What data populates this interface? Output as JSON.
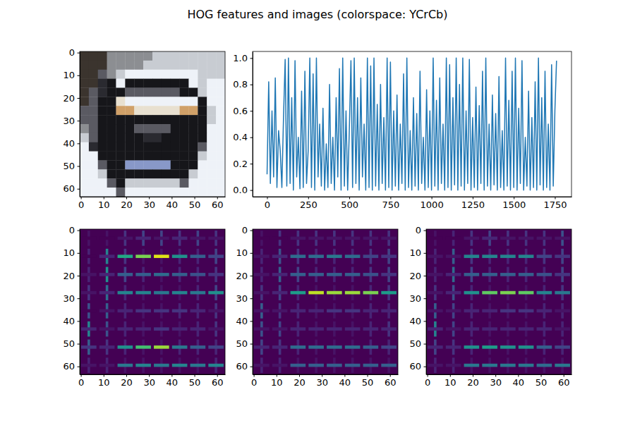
{
  "title": "HOG features and images (colorspace: YCrCb)",
  "chart_data": [
    {
      "type": "image",
      "xlim": [
        -0.5,
        63.5
      ],
      "ylim": [
        63.5,
        -0.5
      ],
      "xticks": [
        0,
        10,
        20,
        30,
        40,
        50,
        60
      ],
      "yticks": [
        0,
        10,
        20,
        30,
        40,
        50,
        60
      ],
      "pixels": [
        [
          "#3b342e",
          "#3b342e",
          "#3b342e",
          "#8c8e92",
          "#8c8e92",
          "#8c8e92",
          "#8c8e92",
          "#8c8e92",
          "#c8ccd2",
          "#c8ccd2",
          "#c8ccd2",
          "#c8ccd2",
          "#c8ccd2",
          "#c8ccd2",
          "#c8ccd2",
          "#c8ccd2"
        ],
        [
          "#3b342e",
          "#3b342e",
          "#3b342e",
          "#8c8e92",
          "#8c8e92",
          "#8c8e92",
          "#8c8e92",
          "#c8ccd2",
          "#c8ccd2",
          "#c8ccd2",
          "#c8ccd2",
          "#c8ccd2",
          "#c8ccd2",
          "#c8ccd2",
          "#c8ccd2",
          "#c8ccd2"
        ],
        [
          "#3b342e",
          "#3b342e",
          "#5a5a62",
          "#8c8e92",
          "#c8ccd2",
          "#eef2f8",
          "#eef2f8",
          "#eef2f8",
          "#eef2f8",
          "#eef2f8",
          "#eef2f8",
          "#eef2f8",
          "#eef2f8",
          "#c8ccd2",
          "#c8ccd2",
          "#c8ccd2"
        ],
        [
          "#3b342e",
          "#3b342e",
          "#2a2a30",
          "#16161a",
          "#eef2f8",
          "#16161a",
          "#16161a",
          "#16161a",
          "#16161a",
          "#16161a",
          "#16161a",
          "#16161a",
          "#eef2f8",
          "#c8ccd2",
          "#eef2f8",
          "#eef2f8"
        ],
        [
          "#3b342e",
          "#5a5a62",
          "#2a2a30",
          "#16161a",
          "#16161a",
          "#5a5a62",
          "#5a5a62",
          "#5a5a62",
          "#5a5a62",
          "#5a5a62",
          "#5a5a62",
          "#16161a",
          "#16161a",
          "#c8ccd2",
          "#eef2f8",
          "#eef2f8"
        ],
        [
          "#3b342e",
          "#5a5a62",
          "#16161a",
          "#16161a",
          "#e8e0d0",
          "#eef2f8",
          "#eef2f8",
          "#eef2f8",
          "#eef2f8",
          "#eef2f8",
          "#eef2f8",
          "#eef2f8",
          "#eef2f8",
          "#16161a",
          "#eef2f8",
          "#eef2f8"
        ],
        [
          "#5a5a62",
          "#5a5a62",
          "#16161a",
          "#16161a",
          "#d0a068",
          "#d0a068",
          "#e8e0d0",
          "#e8e0d0",
          "#e8e0d0",
          "#e8e0d0",
          "#e8e0d0",
          "#d0a068",
          "#d0a068",
          "#16161a",
          "#c8ccd2",
          "#eef2f8"
        ],
        [
          "#5a5a62",
          "#5a5a62",
          "#16161a",
          "#16161a",
          "#16161a",
          "#16161a",
          "#16161a",
          "#16161a",
          "#16161a",
          "#16161a",
          "#16161a",
          "#16161a",
          "#16161a",
          "#16161a",
          "#c8ccd2",
          "#eef2f8"
        ],
        [
          "#8c8e92",
          "#5a5a62",
          "#16161a",
          "#16161a",
          "#16161a",
          "#16161a",
          "#5a5a62",
          "#5a5a62",
          "#5a5a62",
          "#5a5a62",
          "#16161a",
          "#16161a",
          "#16161a",
          "#16161a",
          "#eef2f8",
          "#eef2f8"
        ],
        [
          "#c8ccd2",
          "#5a5a62",
          "#16161a",
          "#16161a",
          "#16161a",
          "#16161a",
          "#16161a",
          "#2a2a30",
          "#2a2a30",
          "#16161a",
          "#16161a",
          "#16161a",
          "#16161a",
          "#16161a",
          "#eef2f8",
          "#eef2f8"
        ],
        [
          "#eef2f8",
          "#2a2a30",
          "#16161a",
          "#16161a",
          "#16161a",
          "#16161a",
          "#16161a",
          "#16161a",
          "#16161a",
          "#16161a",
          "#16161a",
          "#16161a",
          "#16161a",
          "#5a5a62",
          "#eef2f8",
          "#eef2f8"
        ],
        [
          "#eef2f8",
          "#eef2f8",
          "#16161a",
          "#16161a",
          "#16161a",
          "#16161a",
          "#16161a",
          "#16161a",
          "#16161a",
          "#16161a",
          "#16161a",
          "#16161a",
          "#16161a",
          "#c8ccd2",
          "#eef2f8",
          "#eef2f8"
        ],
        [
          "#eef2f8",
          "#eef2f8",
          "#5a5a62",
          "#16161a",
          "#16161a",
          "#8898c8",
          "#8898c8",
          "#8898c8",
          "#8898c8",
          "#8898c8",
          "#16161a",
          "#16161a",
          "#16161a",
          "#eef2f8",
          "#eef2f8",
          "#eef2f8"
        ],
        [
          "#eef2f8",
          "#eef2f8",
          "#c8ccd2",
          "#16161a",
          "#16161a",
          "#16161a",
          "#16161a",
          "#16161a",
          "#16161a",
          "#16161a",
          "#16161a",
          "#16161a",
          "#c8ccd2",
          "#eef2f8",
          "#eef2f8",
          "#eef2f8"
        ],
        [
          "#eef2f8",
          "#eef2f8",
          "#eef2f8",
          "#5a5a62",
          "#16161a",
          "#c8ccd2",
          "#c8ccd2",
          "#c8ccd2",
          "#c8ccd2",
          "#c8ccd2",
          "#c8ccd2",
          "#5a5a62",
          "#eef2f8",
          "#eef2f8",
          "#eef2f8",
          "#eef2f8"
        ],
        [
          "#eef2f8",
          "#eef2f8",
          "#eef2f8",
          "#eef2f8",
          "#5a5a62",
          "#eef2f8",
          "#eef2f8",
          "#eef2f8",
          "#eef2f8",
          "#eef2f8",
          "#eef2f8",
          "#eef2f8",
          "#eef2f8",
          "#eef2f8",
          "#eef2f8",
          "#eef2f8"
        ]
      ]
    },
    {
      "type": "line",
      "color": "#1f77b4",
      "xlim": [
        -88,
        1851
      ],
      "ylim": [
        -0.05,
        1.05
      ],
      "xticks": [
        0,
        250,
        500,
        750,
        1000,
        1250,
        1500,
        1750
      ],
      "yticks": [
        {
          "value": 0,
          "label": "0.0"
        },
        {
          "value": 0.2,
          "label": "0.2"
        },
        {
          "value": 0.4,
          "label": "0.4"
        },
        {
          "value": 0.6,
          "label": "0.6"
        },
        {
          "value": 0.8,
          "label": "0.8"
        },
        {
          "value": 1,
          "label": "1.0"
        }
      ],
      "x": [
        0,
        10,
        20,
        30,
        40,
        50,
        60,
        70,
        80,
        90,
        100,
        110,
        120,
        130,
        140,
        150,
        160,
        170,
        180,
        190,
        200,
        210,
        220,
        230,
        240,
        250,
        260,
        270,
        280,
        290,
        300,
        310,
        320,
        330,
        340,
        350,
        360,
        370,
        380,
        390,
        400,
        410,
        420,
        430,
        440,
        450,
        460,
        470,
        480,
        490,
        500,
        510,
        520,
        530,
        540,
        550,
        560,
        570,
        580,
        590,
        600,
        610,
        620,
        630,
        640,
        650,
        660,
        670,
        680,
        690,
        700,
        710,
        720,
        730,
        740,
        750,
        760,
        770,
        780,
        790,
        800,
        810,
        820,
        830,
        840,
        850,
        860,
        870,
        880,
        890,
        900,
        910,
        920,
        930,
        940,
        950,
        960,
        970,
        980,
        990,
        1000,
        1010,
        1020,
        1030,
        1040,
        1050,
        1060,
        1070,
        1080,
        1090,
        1100,
        1110,
        1120,
        1130,
        1140,
        1150,
        1160,
        1170,
        1180,
        1190,
        1200,
        1210,
        1220,
        1230,
        1240,
        1250,
        1260,
        1270,
        1280,
        1290,
        1300,
        1310,
        1320,
        1330,
        1340,
        1350,
        1360,
        1370,
        1380,
        1390,
        1400,
        1410,
        1420,
        1430,
        1440,
        1450,
        1460,
        1470,
        1480,
        1490,
        1500,
        1510,
        1520,
        1530,
        1540,
        1550,
        1560,
        1570,
        1580,
        1590,
        1600,
        1610,
        1620,
        1630,
        1640,
        1650,
        1660,
        1670,
        1680,
        1690,
        1700,
        1710,
        1720,
        1730,
        1740,
        1750,
        1760
      ],
      "values": [
        0.12,
        0.82,
        0.05,
        0.6,
        0.1,
        0.85,
        0.02,
        0.45,
        0.3,
        0.02,
        0.55,
        0.99,
        0.03,
        1.0,
        0.05,
        0.7,
        0.0,
        0.98,
        0.1,
        0.4,
        0.01,
        0.75,
        0.02,
        0.9,
        0.05,
        0.3,
        1.0,
        0.02,
        0.88,
        0.0,
        1.0,
        0.1,
        0.5,
        0.03,
        0.62,
        0.0,
        0.35,
        0.02,
        0.8,
        0.05,
        0.4,
        0.0,
        0.7,
        0.1,
        0.92,
        0.0,
        1.0,
        0.03,
        0.6,
        0.0,
        0.45,
        0.98,
        0.02,
        1.0,
        0.05,
        0.7,
        0.0,
        0.85,
        0.1,
        0.5,
        0.0,
        1.0,
        0.02,
        0.94,
        0.0,
        1.0,
        0.03,
        0.65,
        0.0,
        0.8,
        0.05,
        0.55,
        0.0,
        1.0,
        0.02,
        0.97,
        0.0,
        0.6,
        0.03,
        0.72,
        0.0,
        0.5,
        0.05,
        0.88,
        0.0,
        1.0,
        0.02,
        0.45,
        0.0,
        0.7,
        0.03,
        0.58,
        0.0,
        0.9,
        0.05,
        0.4,
        0.0,
        0.76,
        0.02,
        0.6,
        0.0,
        1.0,
        0.03,
        0.68,
        0.0,
        0.85,
        0.05,
        0.5,
        0.0,
        1.0,
        0.02,
        0.95,
        0.0,
        0.7,
        0.04,
        1.0,
        0.0,
        0.8,
        0.03,
        1.0,
        0.0,
        0.6,
        0.05,
        0.99,
        0.0,
        0.55,
        0.02,
        0.78,
        0.0,
        0.64,
        0.05,
        0.9,
        0.0,
        1.0,
        0.03,
        0.5,
        0.0,
        0.72,
        0.04,
        0.58,
        0.0,
        0.86,
        0.02,
        0.45,
        0.0,
        1.0,
        0.03,
        0.68,
        0.0,
        0.9,
        0.02,
        1.0,
        0.0,
        0.62,
        0.05,
        0.98,
        0.0,
        0.4,
        0.03,
        0.75,
        0.0,
        0.55,
        0.02,
        0.82,
        0.0,
        1.0,
        0.04,
        0.7,
        0.0,
        0.9,
        0.02,
        0.5,
        0.0,
        0.95,
        0.03,
        0.6,
        0.98
      ]
    },
    {
      "type": "hog",
      "clim": [
        0,
        1
      ],
      "xlim": [
        -0.5,
        63.5
      ],
      "ylim": [
        63.5,
        -0.5
      ],
      "xticks": [
        0,
        10,
        20,
        30,
        40,
        50,
        60
      ],
      "yticks": [
        0,
        10,
        20,
        30,
        40,
        50,
        60
      ],
      "h": [
        [
          0,
          0,
          0.05,
          0.1,
          0.05,
          0.1,
          0.05,
          0.05
        ],
        [
          0,
          0.1,
          0.6,
          0.8,
          0.95,
          0.5,
          0.3,
          0.2
        ],
        [
          0.05,
          0.1,
          0.3,
          0.3,
          0.35,
          0.3,
          0.25,
          0.15
        ],
        [
          0.05,
          0.1,
          0.45,
          0.45,
          0.4,
          0.45,
          0.4,
          0.5
        ],
        [
          0,
          0.05,
          0.1,
          0.15,
          0.15,
          0.15,
          0.1,
          0.05
        ],
        [
          0.1,
          0.05,
          0.1,
          0.1,
          0.15,
          0.1,
          0.1,
          0.05
        ],
        [
          0.15,
          0.1,
          0.5,
          0.7,
          0.85,
          0.4,
          0.3,
          0.2
        ],
        [
          0.05,
          0.05,
          0.4,
          0.45,
          0.4,
          0.45,
          0.4,
          0.45
        ]
      ],
      "v": [
        [
          0.05,
          0.05,
          0.15,
          0.2,
          0.2,
          0.15,
          0.2,
          0.15
        ],
        [
          0.1,
          0.45,
          0.15,
          0.05,
          0.05,
          0.1,
          0.1,
          0.2
        ],
        [
          0.1,
          0.5,
          0.2,
          0.1,
          0.05,
          0.1,
          0.1,
          0.15
        ],
        [
          0.15,
          0.35,
          0.1,
          0.05,
          0.05,
          0.05,
          0.1,
          0.2
        ],
        [
          0.25,
          0.3,
          0.1,
          0.05,
          0.05,
          0.1,
          0.1,
          0.15
        ],
        [
          0.45,
          0.25,
          0.1,
          0.05,
          0.05,
          0.05,
          0.1,
          0.15
        ],
        [
          0.3,
          0.15,
          0.1,
          0.05,
          0.05,
          0.1,
          0.1,
          0.1
        ],
        [
          0.1,
          0.1,
          0.05,
          0.05,
          0.05,
          0.05,
          0.05,
          0.1
        ]
      ]
    },
    {
      "type": "hog",
      "clim": [
        0,
        1
      ],
      "xlim": [
        -0.5,
        63.5
      ],
      "ylim": [
        63.5,
        -0.5
      ],
      "xticks": [
        0,
        10,
        20,
        30,
        40,
        50,
        60
      ],
      "yticks": [
        0,
        10,
        20,
        30,
        40,
        50,
        60
      ],
      "h": [
        [
          0,
          0,
          0.05,
          0.05,
          0.05,
          0.05,
          0.05,
          0.05
        ],
        [
          0.05,
          0.1,
          0.35,
          0.35,
          0.4,
          0.35,
          0.2,
          0.15
        ],
        [
          0.05,
          0.1,
          0.3,
          0.3,
          0.3,
          0.3,
          0.25,
          0.15
        ],
        [
          0.05,
          0.1,
          0.55,
          0.9,
          0.85,
          0.85,
          0.8,
          0.55
        ],
        [
          0.05,
          0.05,
          0.1,
          0.1,
          0.15,
          0.15,
          0.1,
          0.1
        ],
        [
          0.05,
          0.05,
          0.1,
          0.1,
          0.1,
          0.1,
          0.1,
          0.1
        ],
        [
          0.1,
          0.1,
          0.35,
          0.35,
          0.35,
          0.35,
          0.3,
          0.2
        ],
        [
          0.05,
          0.05,
          0.3,
          0.3,
          0.3,
          0.3,
          0.3,
          0.3
        ]
      ],
      "v": [
        [
          0.05,
          0.15,
          0.15,
          0.15,
          0.15,
          0.15,
          0.15,
          0.15
        ],
        [
          0.1,
          0.25,
          0.15,
          0.1,
          0.1,
          0.1,
          0.15,
          0.2
        ],
        [
          0.1,
          0.3,
          0.2,
          0.1,
          0.1,
          0.1,
          0.15,
          0.2
        ],
        [
          0.15,
          0.2,
          0.1,
          0.05,
          0.05,
          0.05,
          0.1,
          0.15
        ],
        [
          0.3,
          0.15,
          0.1,
          0.05,
          0.05,
          0.05,
          0.1,
          0.1
        ],
        [
          0.25,
          0.2,
          0.1,
          0.05,
          0.05,
          0.05,
          0.1,
          0.15
        ],
        [
          0.2,
          0.15,
          0.1,
          0.05,
          0.05,
          0.05,
          0.1,
          0.1
        ],
        [
          0.1,
          0.1,
          0.05,
          0.05,
          0.05,
          0.05,
          0.05,
          0.05
        ]
      ]
    },
    {
      "type": "hog",
      "clim": [
        0,
        1
      ],
      "xlim": [
        -0.5,
        63.5
      ],
      "ylim": [
        63.5,
        -0.5
      ],
      "xticks": [
        0,
        10,
        20,
        30,
        40,
        50,
        60
      ],
      "yticks": [
        0,
        10,
        20,
        30,
        40,
        50,
        60
      ],
      "h": [
        [
          0,
          0,
          0.05,
          0.1,
          0.05,
          0.05,
          0.05,
          0.05
        ],
        [
          0.05,
          0.05,
          0.45,
          0.45,
          0.45,
          0.45,
          0.2,
          0.15
        ],
        [
          0.05,
          0.1,
          0.3,
          0.3,
          0.3,
          0.3,
          0.25,
          0.15
        ],
        [
          0.05,
          0.1,
          0.5,
          0.75,
          0.8,
          0.75,
          0.45,
          0.4
        ],
        [
          0.05,
          0.05,
          0.1,
          0.1,
          0.15,
          0.15,
          0.1,
          0.05
        ],
        [
          0.1,
          0.05,
          0.1,
          0.1,
          0.1,
          0.1,
          0.1,
          0.05
        ],
        [
          0.1,
          0.1,
          0.5,
          0.55,
          0.5,
          0.5,
          0.3,
          0.2
        ],
        [
          0.05,
          0.05,
          0.4,
          0.4,
          0.4,
          0.4,
          0.35,
          0.4
        ]
      ],
      "v": [
        [
          0.05,
          0.1,
          0.15,
          0.2,
          0.15,
          0.15,
          0.15,
          0.25
        ],
        [
          0.1,
          0.3,
          0.15,
          0.1,
          0.1,
          0.1,
          0.15,
          0.2
        ],
        [
          0.1,
          0.35,
          0.2,
          0.1,
          0.1,
          0.1,
          0.1,
          0.2
        ],
        [
          0.15,
          0.25,
          0.1,
          0.05,
          0.05,
          0.05,
          0.1,
          0.15
        ],
        [
          0.3,
          0.2,
          0.1,
          0.05,
          0.05,
          0.05,
          0.1,
          0.1
        ],
        [
          0.45,
          0.2,
          0.1,
          0.05,
          0.05,
          0.05,
          0.1,
          0.1
        ],
        [
          0.2,
          0.15,
          0.1,
          0.05,
          0.05,
          0.05,
          0.1,
          0.1
        ],
        [
          0.1,
          0.1,
          0.05,
          0.05,
          0.05,
          0.05,
          0.05,
          0.05
        ]
      ]
    }
  ]
}
